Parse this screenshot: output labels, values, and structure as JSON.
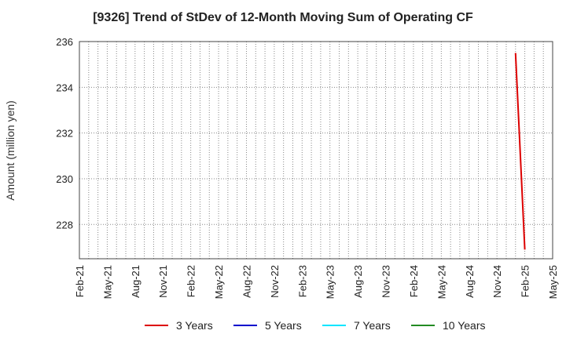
{
  "chart_data": {
    "type": "line",
    "title": "[9326]  Trend of StDev of 12-Month Moving Sum of Operating CF",
    "xlabel": "",
    "ylabel": "Amount (million yen)",
    "x_ticks": [
      "Feb-21",
      "May-21",
      "Aug-21",
      "Nov-21",
      "Feb-22",
      "May-22",
      "Aug-22",
      "Nov-22",
      "Feb-23",
      "May-23",
      "Aug-23",
      "Nov-23",
      "Feb-24",
      "May-24",
      "Aug-24",
      "Nov-24",
      "Feb-25",
      "May-25"
    ],
    "xlim": [
      "2021-02",
      "2025-05"
    ],
    "y_ticks": [
      228,
      230,
      232,
      234,
      236
    ],
    "ylim": [
      226.5,
      236
    ],
    "grid": true,
    "legend_position": "bottom",
    "series": [
      {
        "name": "3 Years",
        "color": "#dd0000",
        "points": [
          {
            "x": "2025-01",
            "y": 235.5
          },
          {
            "x": "2025-02",
            "y": 226.9
          }
        ]
      },
      {
        "name": "5 Years",
        "color": "#0000cc",
        "points": []
      },
      {
        "name": "7 Years",
        "color": "#00e5ff",
        "points": []
      },
      {
        "name": "10 Years",
        "color": "#228b22",
        "points": []
      }
    ]
  }
}
